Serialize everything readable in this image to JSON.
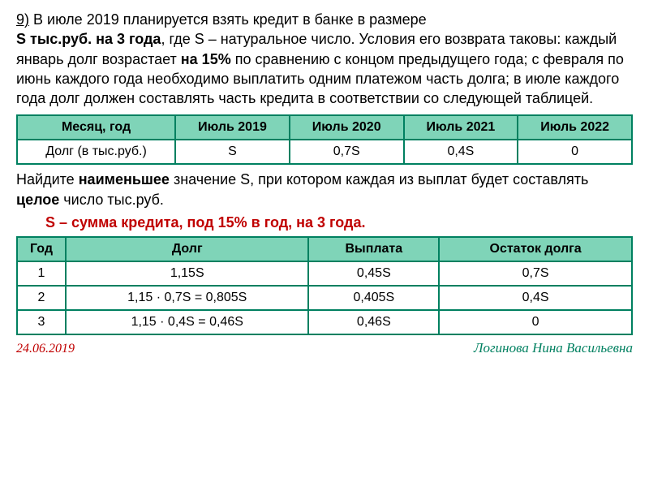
{
  "problem": {
    "num": "9)",
    "line1a": " В июле 2019 планируется взять кредит в банке в размере",
    "line2a": "S тыс.руб. на 3 года",
    "line2b": ", где S – натуральное число. Условия его возврата таковы: каждый январь долг возрастает ",
    "line2c": "на 15%",
    "line2d": " по сравнению с концом предыдущего года; с февраля по июнь каждого года необходимо выплатить одним платежом часть долга; в июле каждого года долг должен составлять часть кредита в соответствии со следующей таблицей."
  },
  "table1": {
    "headers": [
      "Месяц, год",
      "Июль 2019",
      "Июль 2020",
      "Июль 2021",
      "Июль 2022"
    ],
    "rowLabel": "Долг (в тыс.руб.)",
    "cells": [
      "S",
      "0,7S",
      "0,4S",
      "0"
    ]
  },
  "note": {
    "l1a": "Найдите ",
    "l1b": "наименьшее",
    "l1c": " значение S, при котором каждая из выплат будет составлять ",
    "l1d": "целое",
    "l1e": " число тыс.руб."
  },
  "redline": "S – сумма кредита, под 15% в год, на 3 года.",
  "table2": {
    "headers": [
      "Год",
      "Долг",
      "Выплата",
      "Остаток долга"
    ],
    "rows": [
      [
        "1",
        "1,15S",
        "0,45S",
        "0,7S"
      ],
      [
        "2",
        "1,15 · 0,7S = 0,805S",
        "0,405S",
        "0,4S"
      ],
      [
        "3",
        "1,15 · 0,4S = 0,46S",
        "0,46S",
        "0"
      ]
    ]
  },
  "footer": {
    "date": "24.06.2019",
    "author": "Логинова Нина Васильевна"
  },
  "colors": {
    "header_bg": "#7fd4b8",
    "border": "#008060",
    "red": "#c00000",
    "green": "#008060"
  }
}
